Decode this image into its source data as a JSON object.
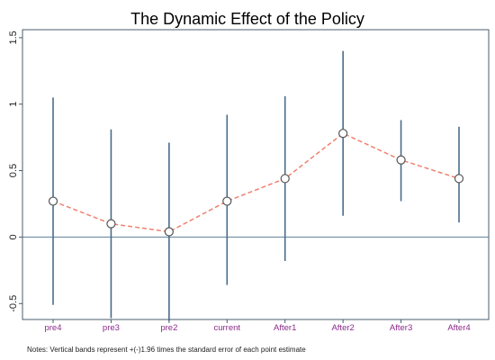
{
  "chart_data": {
    "type": "scatter",
    "title": "The Dynamic Effect of the Policy",
    "xlabel": "",
    "ylabel": "",
    "categories": [
      "pre4",
      "pre3",
      "pre2",
      "current",
      "After1",
      "After2",
      "After3",
      "After4"
    ],
    "series": [
      {
        "values": [
          0.27,
          0.1,
          0.04,
          0.27,
          0.44,
          0.78,
          0.58,
          0.44
        ],
        "ci_lower": [
          -0.51,
          -0.61,
          -0.63,
          -0.36,
          -0.18,
          0.16,
          0.27,
          0.11
        ],
        "ci_upper": [
          1.05,
          0.81,
          0.71,
          0.92,
          1.06,
          1.4,
          0.88,
          0.83
        ]
      }
    ],
    "ylim": [
      -0.62,
      1.56
    ],
    "yticks": [
      -0.5,
      0,
      0.5,
      1,
      1.5
    ],
    "ytick_labels": [
      "-0.5",
      "0",
      "0.5",
      "1",
      "1.5"
    ],
    "reference_line_y": 0,
    "grid": false,
    "note": "Notes: Vertical bands represent +(-)1.96 times the standard error of each point estimate",
    "colors": {
      "point_line": "#f08070",
      "ci_band": "#4a6c8c",
      "reference_line": "#5f7f9a",
      "tick_label": "#8b2a8b",
      "frame": "#4a5d6e"
    }
  }
}
